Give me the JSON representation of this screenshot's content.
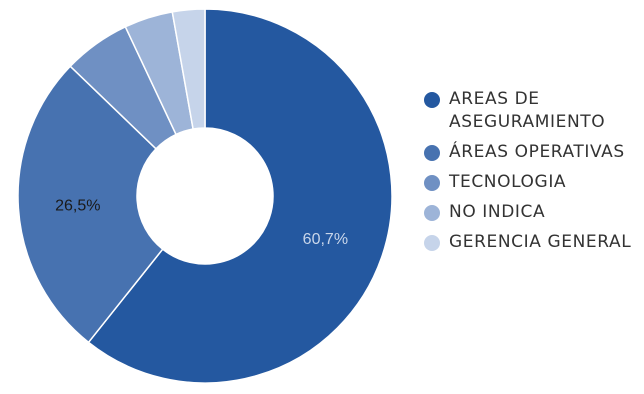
{
  "chart_data": {
    "type": "pie",
    "donut": true,
    "legend_position": "right",
    "series": [
      {
        "name": "AREAS DE ASEGURAMIENTO",
        "value": 60.7,
        "label": "60,7%",
        "color": "#2458a0",
        "label_color": "#c9d6ea"
      },
      {
        "name": "ÁREAS OPERATIVAS",
        "value": 26.5,
        "label": "26,5%",
        "color": "#4772b0",
        "label_color": "#1a1a1a"
      },
      {
        "name": "TECNOLOGIA",
        "value": 5.8,
        "label": "",
        "color": "#6f90c3",
        "label_color": "#1a1a1a"
      },
      {
        "name": "NO INDICA",
        "value": 4.2,
        "label": "",
        "color": "#9db4d8",
        "label_color": "#1a1a1a"
      },
      {
        "name": "GERENCIA GENERAL",
        "value": 2.8,
        "label": "",
        "color": "#c6d4ea",
        "label_color": "#1a1a1a"
      }
    ]
  }
}
